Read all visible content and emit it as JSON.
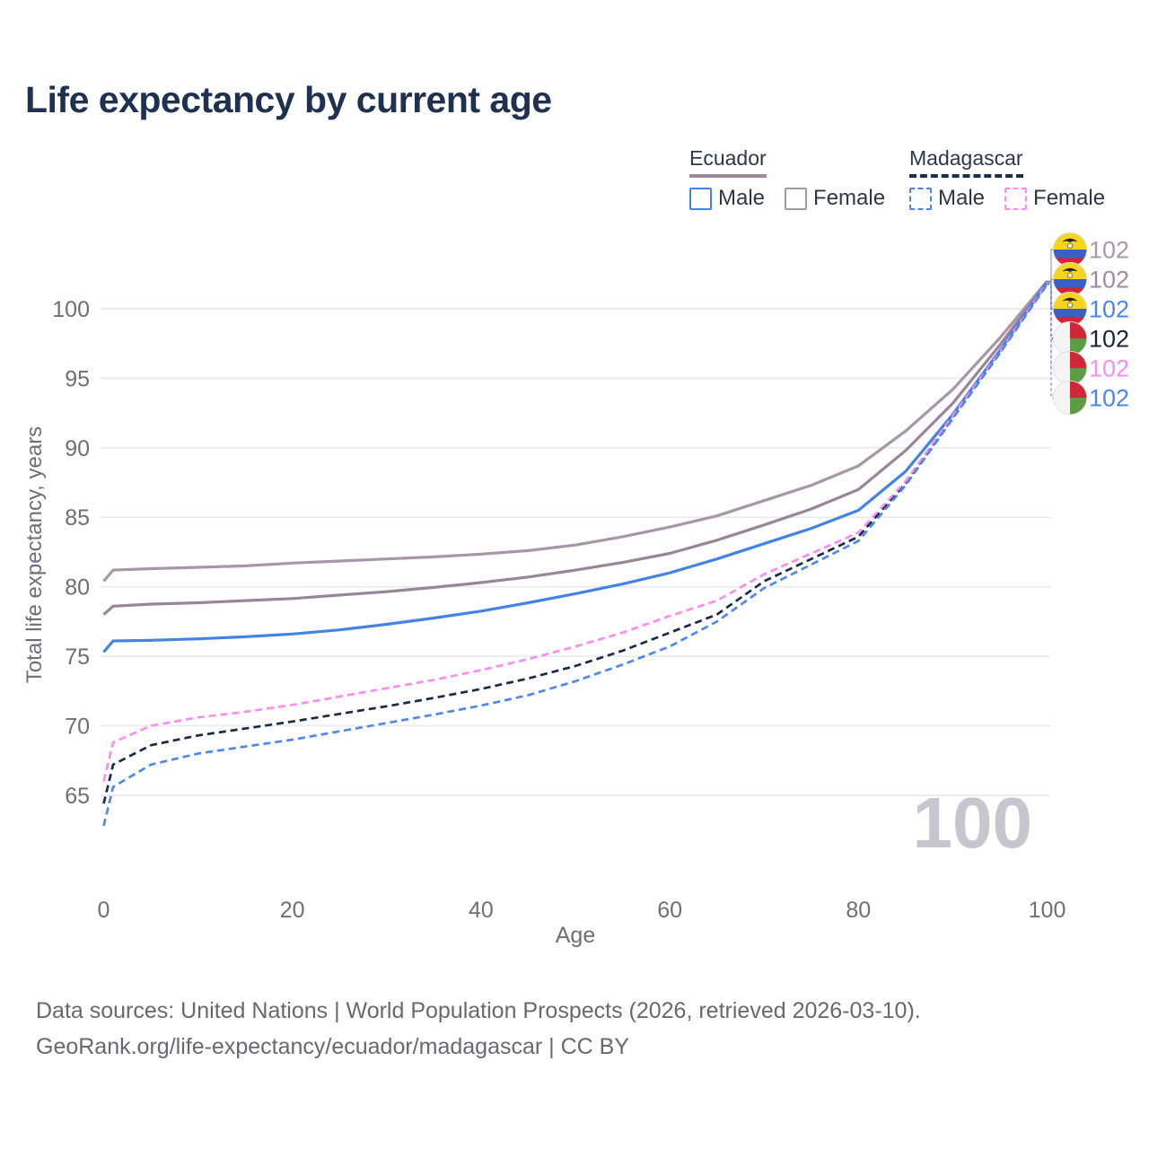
{
  "title": "Life expectancy by current age",
  "age_watermark": "100",
  "legend": {
    "groups": [
      {
        "country": "Ecuador",
        "line_style": "solid",
        "line_color": "#9d8b9d",
        "items": [
          {
            "label": "Male",
            "color": "#4483e4",
            "dashed": false
          },
          {
            "label": "Female",
            "color": "#a795a8",
            "dashed": false
          }
        ]
      },
      {
        "country": "Madagascar",
        "line_style": "dashed",
        "line_color": "#1d2e49",
        "items": [
          {
            "label": "Male",
            "color": "#4a86e8",
            "dashed": true
          },
          {
            "label": "Female",
            "color": "#fb8df2",
            "dashed": true
          }
        ]
      }
    ]
  },
  "footer": {
    "line1": "Data sources: United Nations | World Population Prospects (2026, retrieved 2026-03-10).",
    "line2": "GeoRank.org/life-expectancy/ecuador/madagascar | CC BY"
  },
  "chart_data": {
    "type": "line",
    "title": "Life expectancy by current age",
    "xlabel": "Age",
    "ylabel": "Total life expectancy, years",
    "xlim": [
      0,
      100
    ],
    "ylim": [
      62,
      103.5
    ],
    "x_ticks": [
      0,
      20,
      40,
      60,
      80,
      100
    ],
    "y_ticks": [
      65,
      70,
      75,
      80,
      85,
      90,
      95,
      100
    ],
    "grid": "horizontal",
    "legend_position": "top-right",
    "x": [
      0,
      1,
      5,
      10,
      15,
      20,
      25,
      30,
      35,
      40,
      45,
      50,
      55,
      60,
      65,
      70,
      75,
      80,
      85,
      90,
      95,
      100
    ],
    "series": [
      {
        "name": "Ecuador Female",
        "country": "Ecuador",
        "sex": "female",
        "color": "#a795a8",
        "dash": "solid",
        "flag": "ecuador",
        "end_label": "102",
        "end_label_color": "#ab97ac",
        "row": 0,
        "values": [
          80.4,
          81.2,
          81.3,
          81.4,
          81.5,
          81.7,
          81.85,
          82.0,
          82.15,
          82.35,
          82.6,
          83.0,
          83.6,
          84.3,
          85.1,
          86.2,
          87.3,
          88.7,
          91.2,
          94.2,
          97.9,
          102.0
        ]
      },
      {
        "name": "Ecuador (both sexes)",
        "country": "Ecuador",
        "sex": "all",
        "color": "#988698",
        "dash": "solid",
        "flag": "ecuador",
        "end_label": "102",
        "end_label_color": "#9d8b9d",
        "row": 1,
        "values": [
          78.0,
          78.6,
          78.75,
          78.85,
          79.0,
          79.15,
          79.4,
          79.65,
          79.95,
          80.3,
          80.7,
          81.2,
          81.75,
          82.4,
          83.35,
          84.45,
          85.6,
          87.0,
          89.8,
          93.2,
          97.4,
          101.95
        ]
      },
      {
        "name": "Ecuador Male",
        "country": "Ecuador",
        "sex": "male",
        "color": "#4483e4",
        "dash": "solid",
        "flag": "ecuador",
        "end_label": "102",
        "end_label_color": "#4a86e8",
        "row": 2,
        "values": [
          75.3,
          76.1,
          76.15,
          76.25,
          76.4,
          76.6,
          76.9,
          77.3,
          77.75,
          78.25,
          78.85,
          79.5,
          80.2,
          81.0,
          82.0,
          83.1,
          84.2,
          85.5,
          88.3,
          92.4,
          97.0,
          101.9
        ]
      },
      {
        "name": "Madagascar (both sexes)",
        "country": "Madagascar",
        "sex": "all",
        "color": "#1c2b44",
        "dash": "dashed",
        "flag": "madagascar",
        "end_label": "102",
        "end_label_color": "#1d2433",
        "row": 3,
        "values": [
          64.4,
          67.2,
          68.6,
          69.3,
          69.8,
          70.3,
          70.85,
          71.4,
          72.0,
          72.65,
          73.4,
          74.3,
          75.4,
          76.7,
          78.0,
          80.4,
          82.0,
          83.6,
          87.45,
          92.2,
          96.85,
          101.8
        ]
      },
      {
        "name": "Madagascar Female",
        "country": "Madagascar",
        "sex": "female",
        "color": "#fb8df2",
        "dash": "dashed",
        "flag": "madagascar",
        "end_label": "102",
        "end_label_color": "#fc8df3",
        "row": 4,
        "values": [
          66.0,
          68.8,
          70.0,
          70.6,
          71.0,
          71.5,
          72.1,
          72.7,
          73.3,
          74.0,
          74.8,
          75.7,
          76.7,
          77.9,
          79.0,
          80.9,
          82.4,
          83.9,
          87.6,
          92.3,
          96.9,
          101.85
        ]
      },
      {
        "name": "Madagascar Male",
        "country": "Madagascar",
        "sex": "male",
        "color": "#4f88e8",
        "dash": "dashed",
        "flag": "madagascar",
        "end_label": "102",
        "end_label_color": "#4a86e8",
        "row": 5,
        "values": [
          62.8,
          65.6,
          67.2,
          68.0,
          68.5,
          69.0,
          69.6,
          70.2,
          70.8,
          71.45,
          72.2,
          73.2,
          74.4,
          75.7,
          77.5,
          79.9,
          81.6,
          83.3,
          87.3,
          92.1,
          96.8,
          101.75
        ]
      }
    ]
  }
}
